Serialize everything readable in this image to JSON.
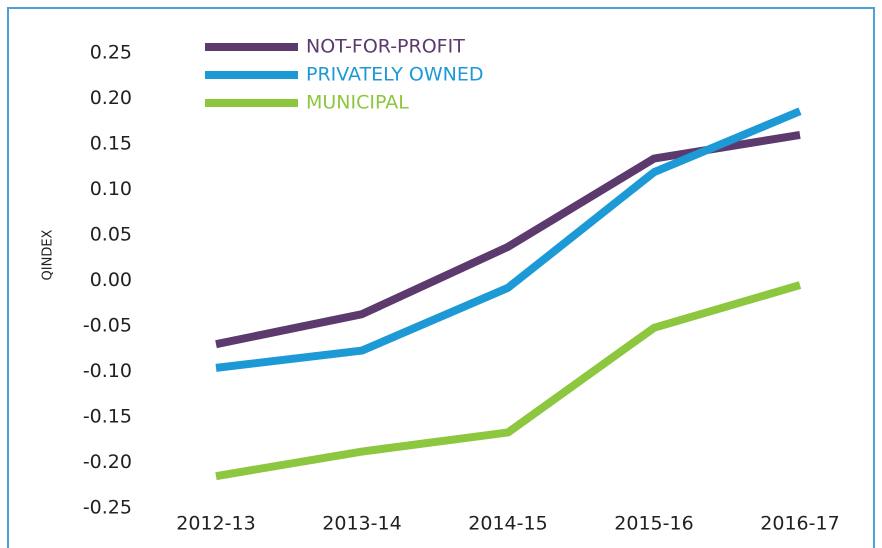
{
  "chart_data": {
    "type": "line",
    "y_label": "QINDEX",
    "categories": [
      "2012-13",
      "2013-14",
      "2014-15",
      "2015-16",
      "2016-17"
    ],
    "series": [
      {
        "name": "NOT-FOR-PROFIT",
        "color": "#5c3a6e",
        "values": [
          -0.07,
          -0.037,
          0.037,
          0.134,
          0.16
        ]
      },
      {
        "name": "PRIVATELY OWNED",
        "color": "#1d9ad6",
        "values": [
          -0.096,
          -0.077,
          -0.008,
          0.119,
          0.186
        ]
      },
      {
        "name": "MUNICIPAL",
        "color": "#8dc63f",
        "values": [
          -0.215,
          -0.188,
          -0.167,
          -0.052,
          -0.005
        ]
      }
    ],
    "ylim": [
      -0.25,
      0.25
    ],
    "yticks": [
      0.25,
      {
        "value": 0.2,
        "label": "0.20"
      },
      0.15,
      {
        "value": 0.1,
        "label": "0.10"
      },
      0.05,
      {
        "value": 0,
        "label": "0.00"
      },
      -0.05,
      {
        "value": -0.1,
        "label": "-0.10"
      },
      -0.15,
      {
        "value": -0.2,
        "label": "-0.20"
      },
      -0.25
    ],
    "legend": "top-left"
  }
}
